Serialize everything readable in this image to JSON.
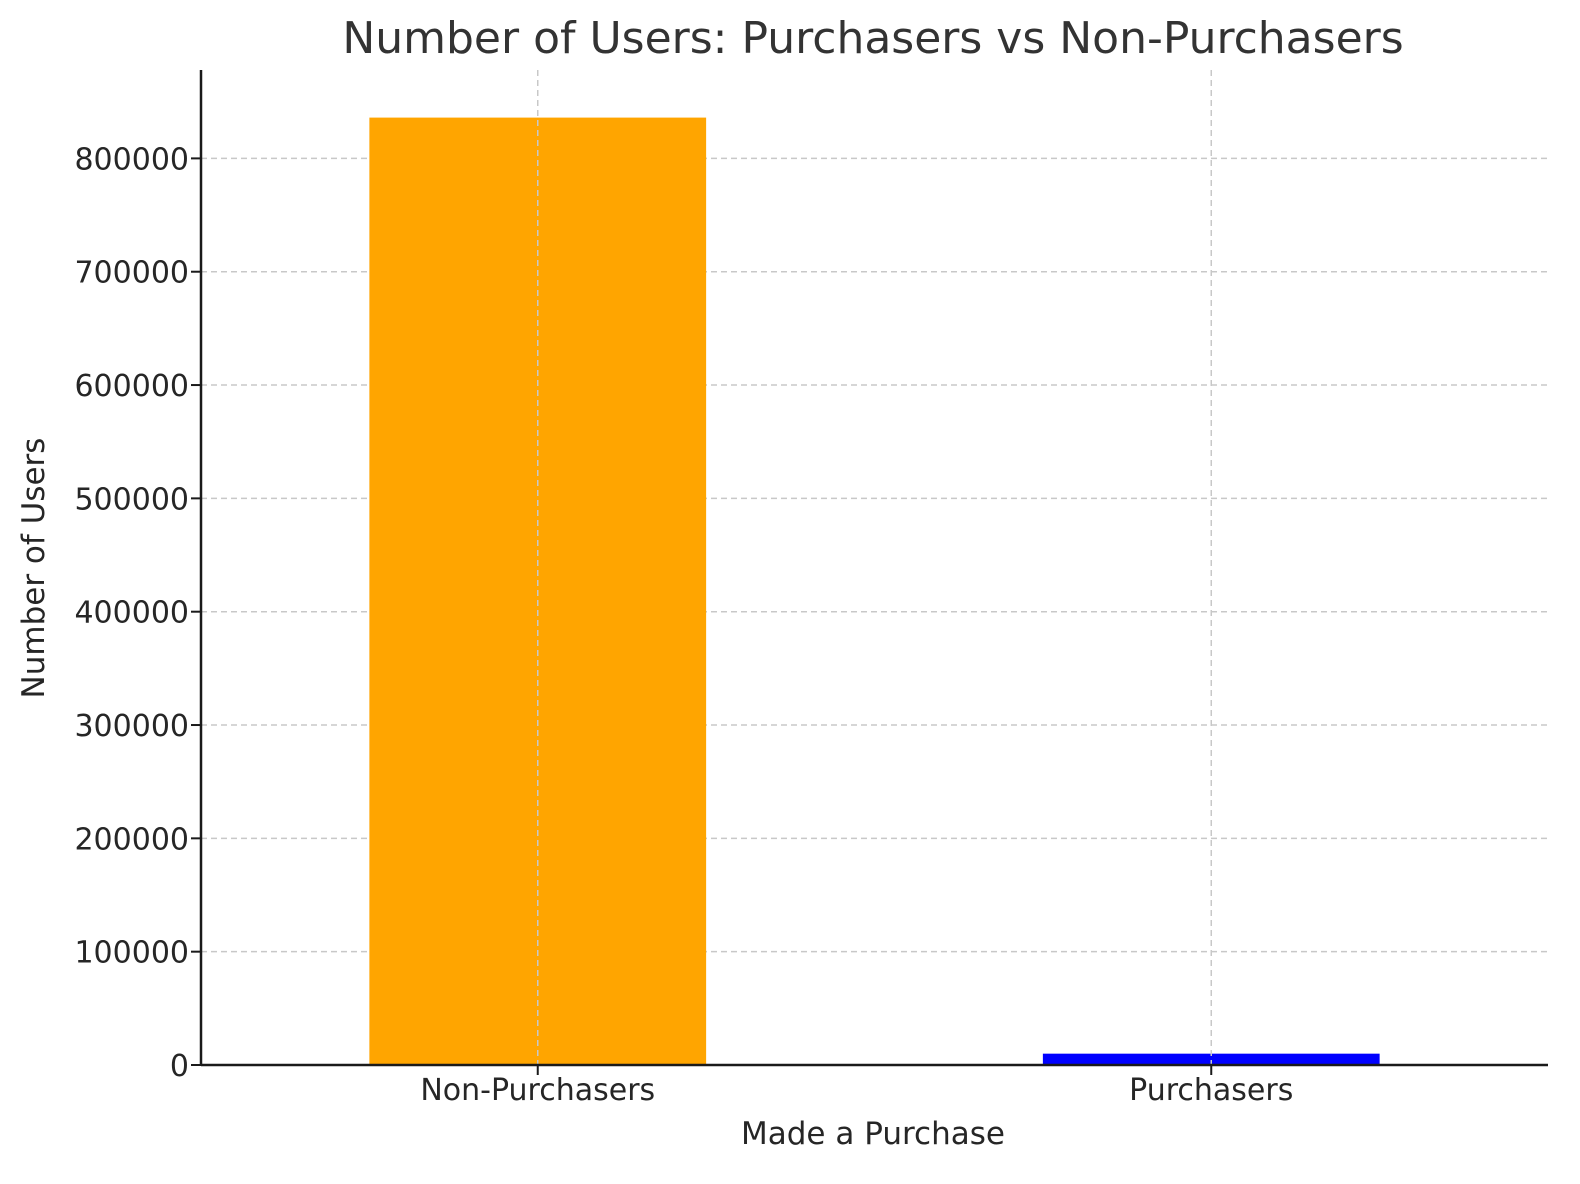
{
  "chart_data": {
    "type": "bar",
    "title": "Number of Users: Purchasers vs Non-Purchasers",
    "xlabel": "Made a Purchase",
    "ylabel": "Number of Users",
    "categories": [
      "Non-Purchasers",
      "Purchasers"
    ],
    "values": [
      836000,
      10000
    ],
    "colors": [
      "#FFA500",
      "#0000FF"
    ],
    "ylim": [
      0,
      878000
    ],
    "yticks": [
      0,
      100000,
      200000,
      300000,
      400000,
      500000,
      600000,
      700000,
      800000
    ],
    "ytick_labels": [
      "0",
      "100000",
      "200000",
      "300000",
      "400000",
      "500000",
      "600000",
      "700000",
      "800000"
    ],
    "grid": true,
    "legend": "none"
  }
}
